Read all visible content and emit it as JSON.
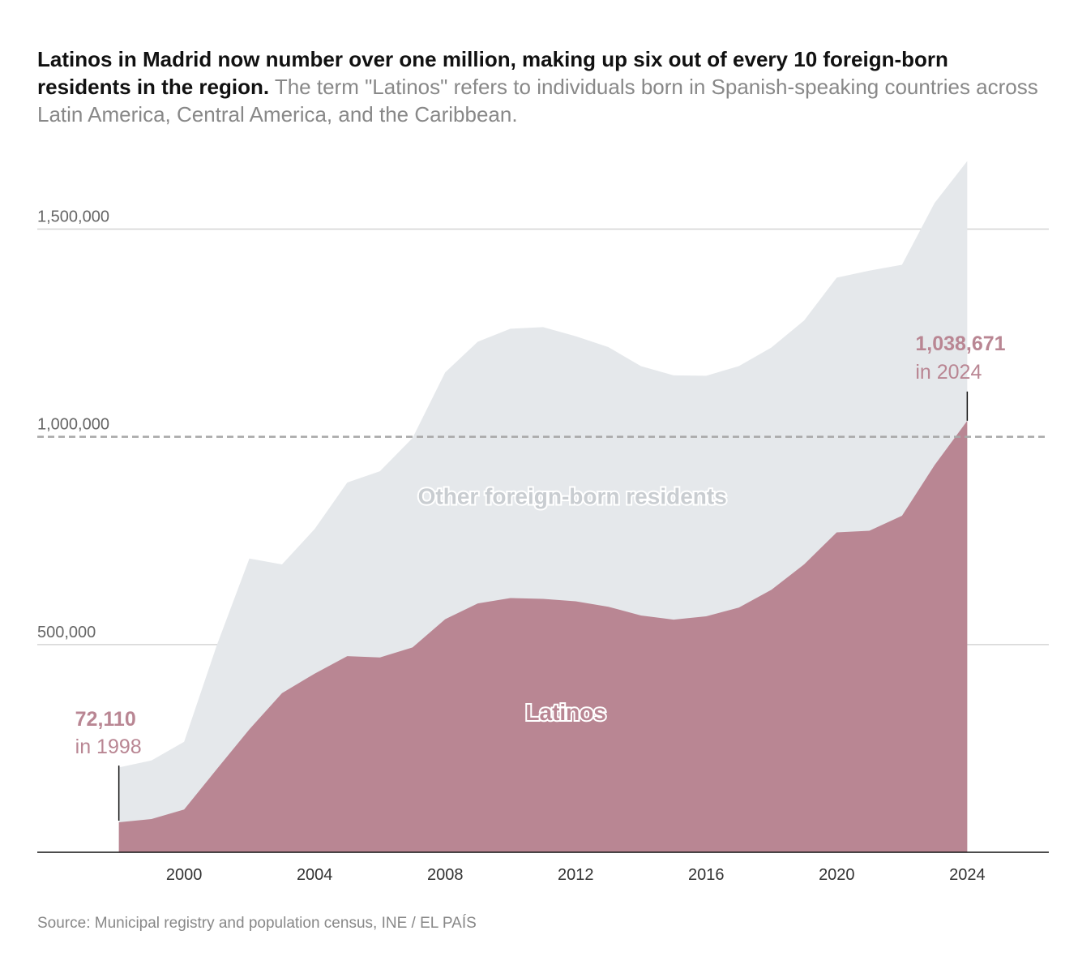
{
  "title": "Latinos in Madrid now number over one million, making up six out of every 10 foreign-born residents in the region.",
  "subtitle": "The term \"Latinos\" refers to individuals born in Spanish-speaking countries across Latin America, Central America, and the Caribbean.",
  "source": "Source: Municipal registry and population census, INE / EL PAÍS",
  "colors": {
    "latinos": "#b98693",
    "other": "#e5e8eb",
    "annotation": "#b98693"
  },
  "chart_data": {
    "type": "area",
    "stacked": true,
    "x": [
      1998,
      1999,
      2000,
      2001,
      2002,
      2003,
      2004,
      2005,
      2006,
      2007,
      2008,
      2009,
      2010,
      2011,
      2012,
      2013,
      2014,
      2015,
      2016,
      2017,
      2018,
      2019,
      2020,
      2021,
      2022,
      2023,
      2024
    ],
    "series": [
      {
        "name": "Latinos",
        "values": [
          72110,
          80000,
          103000,
          200000,
          296000,
          383000,
          430000,
          472000,
          469000,
          493000,
          561000,
          599000,
          612000,
          610000,
          604000,
          591000,
          570000,
          560000,
          568000,
          589000,
          632000,
          693000,
          770000,
          774000,
          810000,
          932000,
          1038671
        ]
      },
      {
        "name": "Other foreign-born residents",
        "values": [
          132000,
          141000,
          163000,
          298000,
          411000,
          310000,
          348000,
          418000,
          448000,
          504000,
          594000,
          630000,
          648000,
          654000,
          638000,
          625000,
          600000,
          588000,
          579000,
          581000,
          583000,
          587000,
          613000,
          626000,
          604000,
          631000,
          625000
        ]
      }
    ],
    "yticks": [
      500000,
      1000000,
      1500000
    ],
    "ytick_labels": [
      "500,000",
      "1,000,000",
      "1,500,000"
    ],
    "xticks": [
      2000,
      2004,
      2008,
      2012,
      2016,
      2020,
      2024
    ],
    "xtick_labels": [
      "2000",
      "2004",
      "2008",
      "2012",
      "2016",
      "2020",
      "2024"
    ],
    "xlim": [
      1995.5,
      2026.5
    ],
    "ylim": [
      0,
      1700000
    ],
    "reference_line": 1000000,
    "area_labels": {
      "latinos": "Latinos",
      "other": "Other foreign-born residents"
    },
    "annotations": [
      {
        "value": "72,110",
        "label": "in 1998",
        "x": 1998
      },
      {
        "value": "1,038,671",
        "label": "in 2024",
        "x": 2024
      }
    ]
  }
}
